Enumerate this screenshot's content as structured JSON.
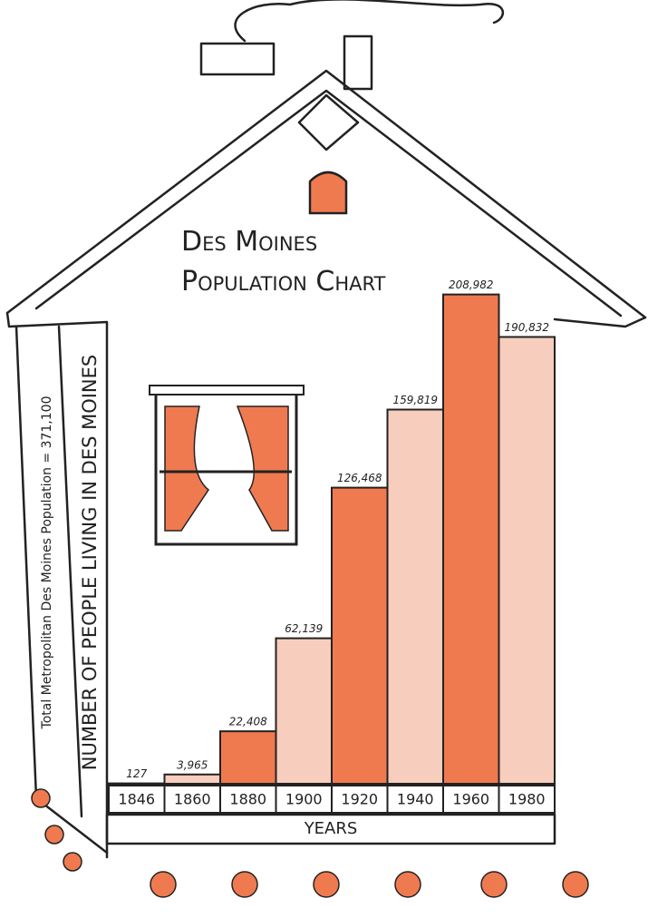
{
  "chart_data": {
    "type": "bar",
    "title": "Des Moines Population Chart",
    "y_label": "Number of People Living in Des Moines",
    "side_note": "Total Metropolitan Des Moines Population = 371,100",
    "x_label": "Years",
    "categories": [
      "1846",
      "1860",
      "1880",
      "1900",
      "1920",
      "1940",
      "1960",
      "1980"
    ],
    "values": [
      127,
      3965,
      22408,
      62139,
      126468,
      159819,
      208982,
      190832
    ],
    "value_labels": [
      "127",
      "3,965",
      "22,408",
      "62,139",
      "126,468",
      "159,819",
      "208,982",
      "190,832"
    ],
    "colors": [
      "#f07a4f",
      "#f7cdbd"
    ],
    "ylim": [
      0,
      210000
    ]
  }
}
